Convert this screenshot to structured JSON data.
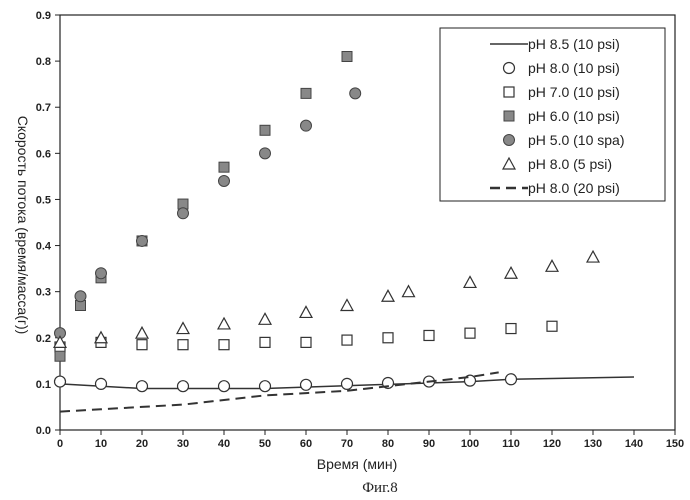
{
  "chart_data": {
    "type": "scatter",
    "xlabel": "Время (мин)",
    "ylabel": "Скорость потока (время/масса(г))",
    "caption": "Фиг.8",
    "xlim": [
      0,
      150
    ],
    "ylim": [
      0,
      0.9
    ],
    "xticks": [
      "0",
      "10",
      "20",
      "30",
      "40",
      "50",
      "60",
      "70",
      "80",
      "90",
      "100",
      "110",
      "120",
      "130",
      "140",
      "150"
    ],
    "yticks": [
      "0.0",
      "0.1",
      "0.2",
      "0.3",
      "0.4",
      "0.5",
      "0.6",
      "0.7",
      "0.8",
      "0.9"
    ],
    "grid": false,
    "legend_position": "top-right",
    "series": [
      {
        "name": "pH 8.5 (10 psi)",
        "marker": "line",
        "color": "#333333",
        "x": [
          0,
          20,
          50,
          100,
          110,
          140
        ],
        "y": [
          0.1,
          0.09,
          0.09,
          0.105,
          0.11,
          0.115
        ]
      },
      {
        "name": "pH 8.0 (10 psi)",
        "marker": "circle-open",
        "color": "#333333",
        "x": [
          0,
          10,
          20,
          30,
          40,
          50,
          60,
          70,
          80,
          90,
          100,
          110
        ],
        "y": [
          0.105,
          0.1,
          0.095,
          0.095,
          0.095,
          0.095,
          0.098,
          0.1,
          0.102,
          0.105,
          0.107,
          0.11
        ]
      },
      {
        "name": "pH 7.0 (10 psi)",
        "marker": "square-open",
        "color": "#333333",
        "x": [
          0,
          10,
          20,
          30,
          40,
          50,
          60,
          70,
          80,
          90,
          100,
          110,
          120
        ],
        "y": [
          0.18,
          0.19,
          0.185,
          0.185,
          0.185,
          0.19,
          0.19,
          0.195,
          0.2,
          0.205,
          0.21,
          0.22,
          0.225
        ]
      },
      {
        "name": "pH 6.0 (10 psi)",
        "marker": "square-filled",
        "color": "#888888",
        "x": [
          0,
          5,
          10,
          20,
          30,
          40,
          50,
          60,
          70
        ],
        "y": [
          0.16,
          0.27,
          0.33,
          0.41,
          0.49,
          0.57,
          0.65,
          0.73,
          0.81
        ]
      },
      {
        "name": "pH 5.0 (10 spa)",
        "marker": "circle-filled",
        "color": "#888888",
        "x": [
          0,
          5,
          10,
          20,
          30,
          40,
          50,
          60,
          72
        ],
        "y": [
          0.21,
          0.29,
          0.34,
          0.41,
          0.47,
          0.54,
          0.6,
          0.66,
          0.73
        ]
      },
      {
        "name": "pH 8.0 (5 psi)",
        "marker": "triangle-open",
        "color": "#333333",
        "x": [
          0,
          10,
          20,
          30,
          40,
          50,
          60,
          70,
          80,
          85,
          100,
          110,
          120,
          130
        ],
        "y": [
          0.19,
          0.2,
          0.21,
          0.22,
          0.23,
          0.24,
          0.255,
          0.27,
          0.29,
          0.3,
          0.32,
          0.34,
          0.355,
          0.375
        ]
      },
      {
        "name": "pH 8.0 (20 psi)",
        "marker": "dashed-line",
        "color": "#333333",
        "x": [
          0,
          10,
          20,
          30,
          40,
          50,
          60,
          70,
          80,
          90,
          100,
          107
        ],
        "y": [
          0.04,
          0.045,
          0.05,
          0.055,
          0.065,
          0.075,
          0.08,
          0.085,
          0.095,
          0.105,
          0.115,
          0.125
        ]
      }
    ]
  }
}
